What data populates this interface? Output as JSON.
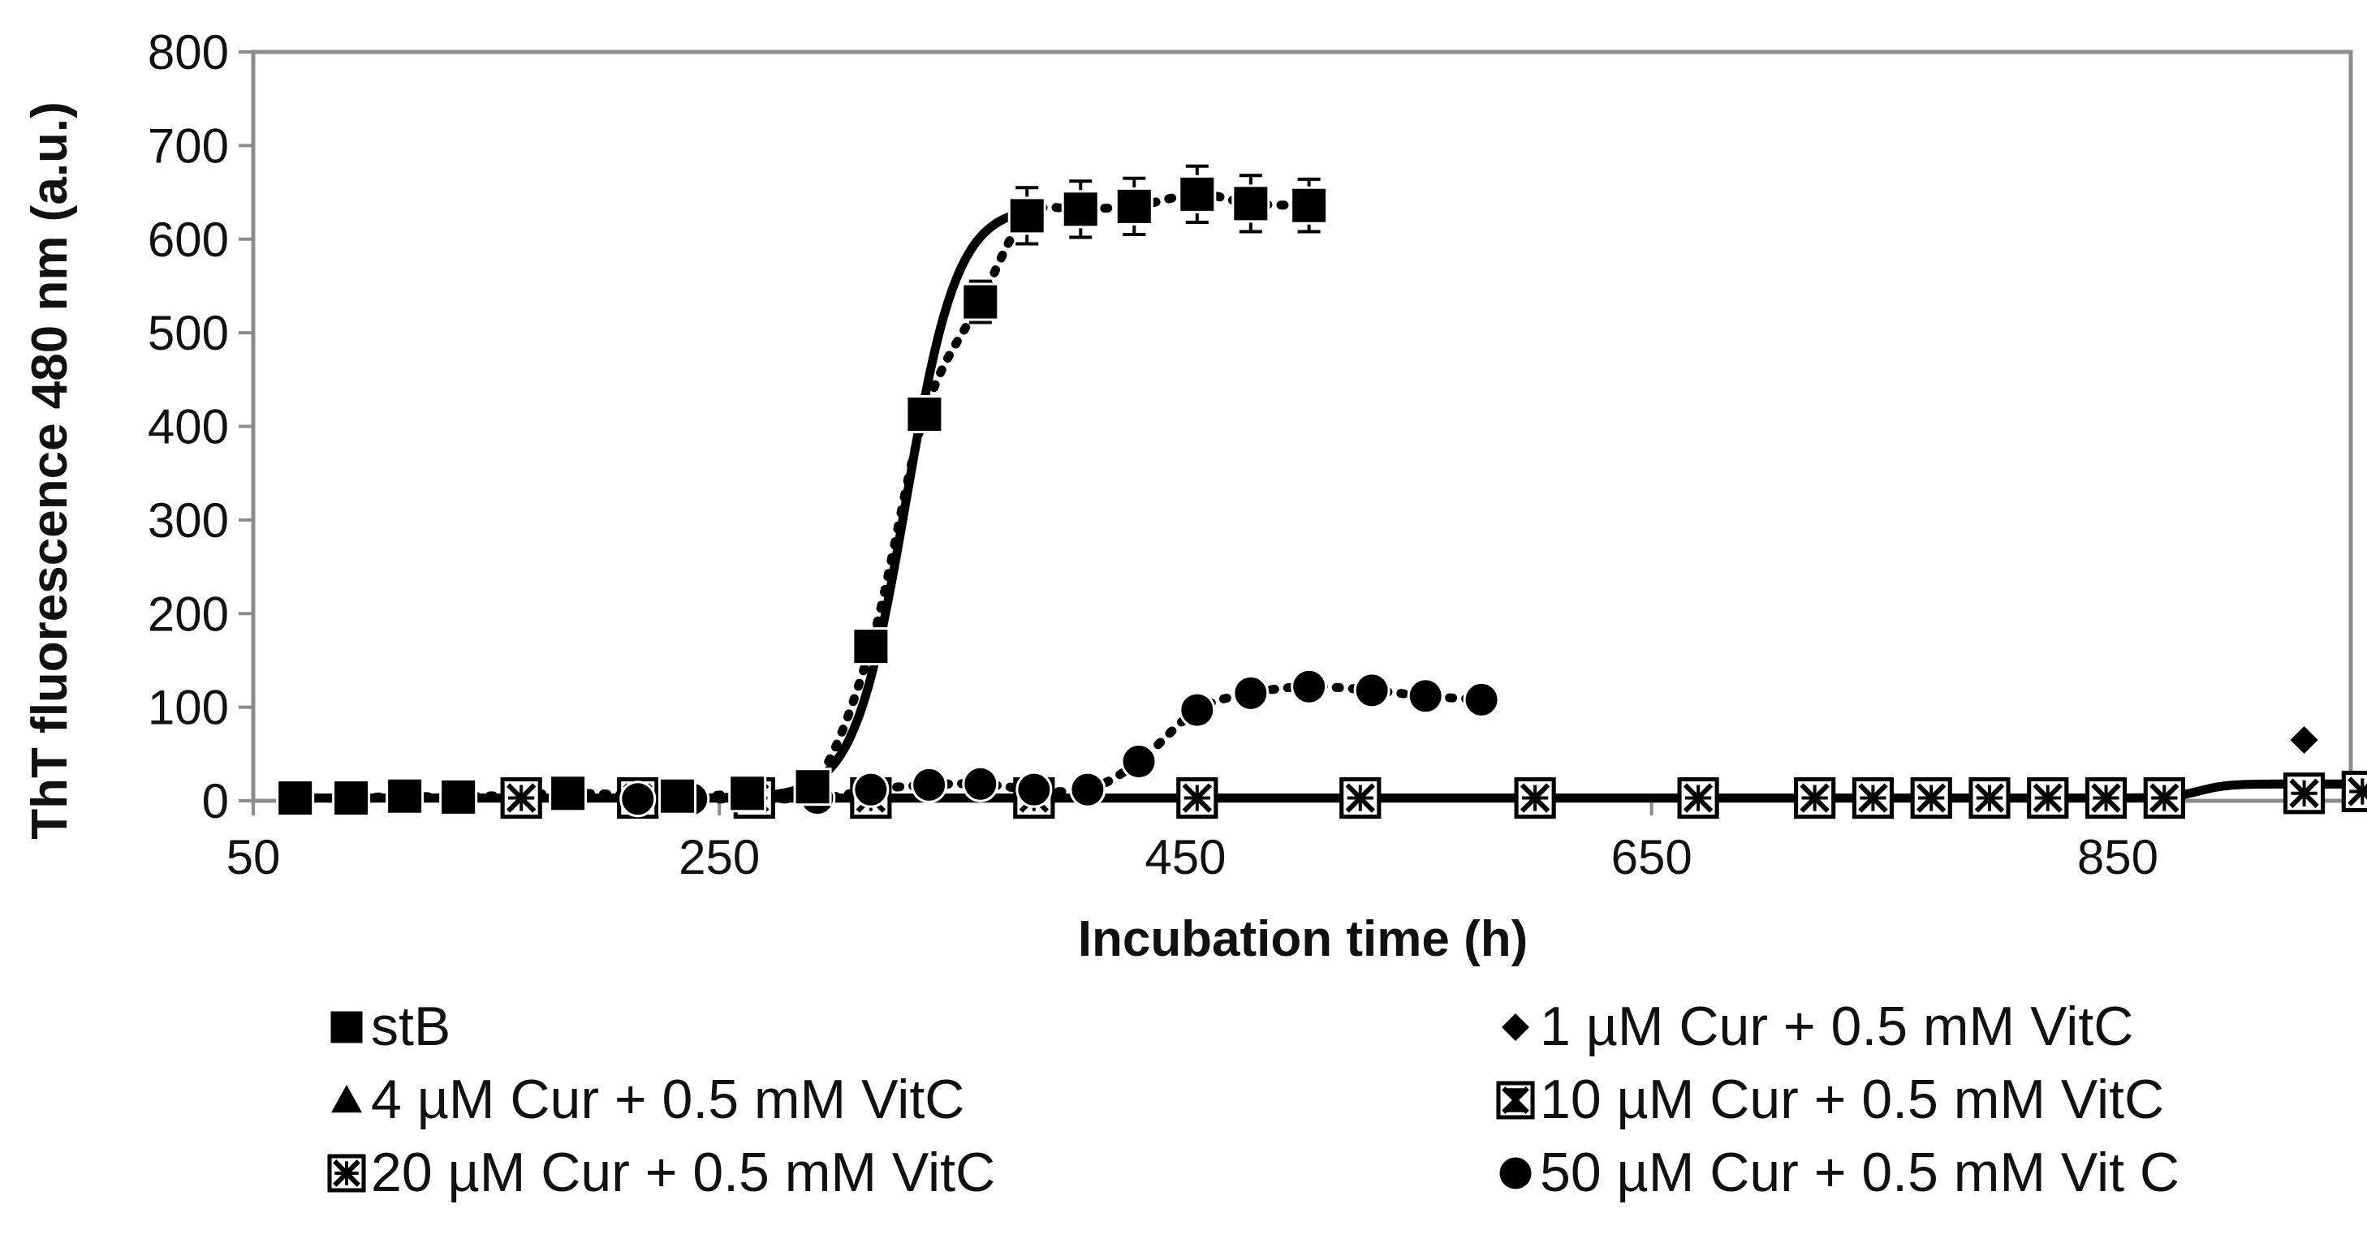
{
  "chart_data": {
    "type": "line",
    "title": "",
    "xlabel": "Incubation time (h)",
    "ylabel": "ThT fluorescence 480 nm (a.u.)",
    "xlim": [
      50,
      950
    ],
    "ylim": [
      0,
      800
    ],
    "xticks": [
      "50",
      "250",
      "450",
      "650",
      "850"
    ],
    "yticks": [
      "0",
      "100",
      "200",
      "300",
      "400",
      "500",
      "600",
      "700",
      "800"
    ],
    "grid": false,
    "legend_position": "bottom",
    "series": [
      {
        "name": "stB",
        "marker": "square",
        "x": [
          68,
          92,
          115,
          138,
          185,
          232,
          262,
          290,
          315,
          338,
          362,
          382,
          405,
          428,
          455,
          478,
          503
        ],
        "y": [
          3,
          3,
          5,
          4,
          8,
          5,
          8,
          15,
          165,
          413,
          533,
          625,
          632,
          635,
          648,
          638,
          636
        ],
        "error": [
          0,
          0,
          0,
          0,
          0,
          0,
          0,
          0,
          8,
          8,
          22,
          30,
          30,
          30,
          30,
          30,
          28
        ]
      },
      {
        "name": "1 µM Cur + 0.5 mM VitC",
        "marker": "diamond",
        "x": [
          930
        ],
        "y": [
          65
        ]
      },
      {
        "name": "4 µM Cur + 0.5 mM VitC",
        "marker": "triangle",
        "x": [
          165,
          215,
          265,
          315,
          385,
          455,
          525,
          600,
          670,
          720,
          745,
          770,
          795,
          820,
          845,
          870,
          930,
          955
        ],
        "y": [
          3,
          3,
          3,
          3,
          3,
          3,
          3,
          3,
          3,
          3,
          3,
          3,
          3,
          3,
          3,
          3,
          8,
          10
        ]
      },
      {
        "name": "10 µM Cur + 0.5 mM VitC",
        "marker": "square-x",
        "x": [
          165,
          215,
          265,
          315,
          385,
          455,
          525,
          600,
          670,
          720,
          745,
          770,
          795,
          820,
          845,
          870,
          930,
          955
        ],
        "y": [
          3,
          3,
          3,
          3,
          3,
          3,
          3,
          3,
          3,
          3,
          3,
          3,
          3,
          3,
          3,
          3,
          8,
          10
        ]
      },
      {
        "name": "20 µM Cur + 0.5 mM VitC",
        "marker": "square-star",
        "x": [
          165,
          215,
          265,
          315,
          385,
          455,
          525,
          600,
          670,
          720,
          745,
          770,
          795,
          820,
          845,
          870,
          930,
          955
        ],
        "y": [
          3,
          3,
          3,
          3,
          3,
          3,
          3,
          3,
          3,
          3,
          3,
          3,
          3,
          3,
          3,
          3,
          8,
          10
        ]
      },
      {
        "name": "50 µM Cur + 0.5 mM Vit C",
        "marker": "circle",
        "x": [
          215,
          238,
          292,
          315,
          340,
          362,
          385,
          408,
          430,
          455,
          478,
          503,
          530,
          553,
          577
        ],
        "y": [
          2,
          2,
          3,
          12,
          17,
          18,
          12,
          12,
          42,
          97,
          115,
          122,
          118,
          112,
          108
        ]
      }
    ]
  }
}
